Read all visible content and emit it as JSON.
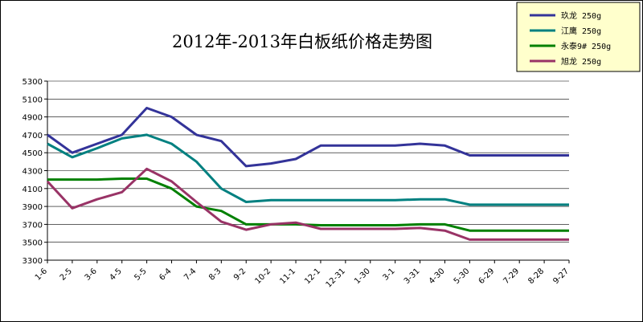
{
  "chart_data": {
    "type": "line",
    "title": "2012年-2013年白板纸价格走势图",
    "xlabel": "",
    "ylabel": "",
    "ylim": [
      3300,
      5300
    ],
    "yticks": [
      3300,
      3500,
      3700,
      3900,
      4100,
      4300,
      4500,
      4700,
      4900,
      5100,
      5300
    ],
    "grid": "horizontal",
    "legend_position": "top-right",
    "categories": [
      "1-6",
      "2-5",
      "3-6",
      "4-5",
      "5-5",
      "6-4",
      "7-4",
      "8-3",
      "9-2",
      "10-2",
      "11-1",
      "12-1",
      "12-31",
      "1-30",
      "3-1",
      "3-31",
      "4-30",
      "5-30",
      "6-29",
      "7-29",
      "8-28",
      "9-27"
    ],
    "series": [
      {
        "name": "玖龙 250g",
        "color": "#333399",
        "values": [
          4700,
          4500,
          4600,
          4700,
          5000,
          4900,
          4700,
          4630,
          4350,
          4380,
          4430,
          4580,
          4580,
          4580,
          4580,
          4600,
          4580,
          4470,
          4470,
          4470,
          4470,
          4470
        ]
      },
      {
        "name": "江鹰 250g",
        "color": "#008080",
        "values": [
          4600,
          4450,
          4550,
          4660,
          4700,
          4600,
          4400,
          4100,
          3950,
          3970,
          3970,
          3970,
          3970,
          3970,
          3970,
          3980,
          3980,
          3920,
          3920,
          3920,
          3920,
          3920
        ]
      },
      {
        "name": "永泰9# 250g",
        "color": "#008000",
        "values": [
          4200,
          4200,
          4200,
          4210,
          4210,
          4100,
          3900,
          3850,
          3700,
          3700,
          3700,
          3690,
          3690,
          3690,
          3690,
          3700,
          3700,
          3630,
          3630,
          3630,
          3630,
          3630
        ]
      },
      {
        "name": "旭龙 250g",
        "color": "#993366",
        "values": [
          4180,
          3880,
          3980,
          4060,
          4320,
          4180,
          3950,
          3730,
          3640,
          3700,
          3720,
          3650,
          3650,
          3650,
          3650,
          3660,
          3630,
          3530,
          3530,
          3530,
          3530,
          3530
        ]
      }
    ]
  }
}
